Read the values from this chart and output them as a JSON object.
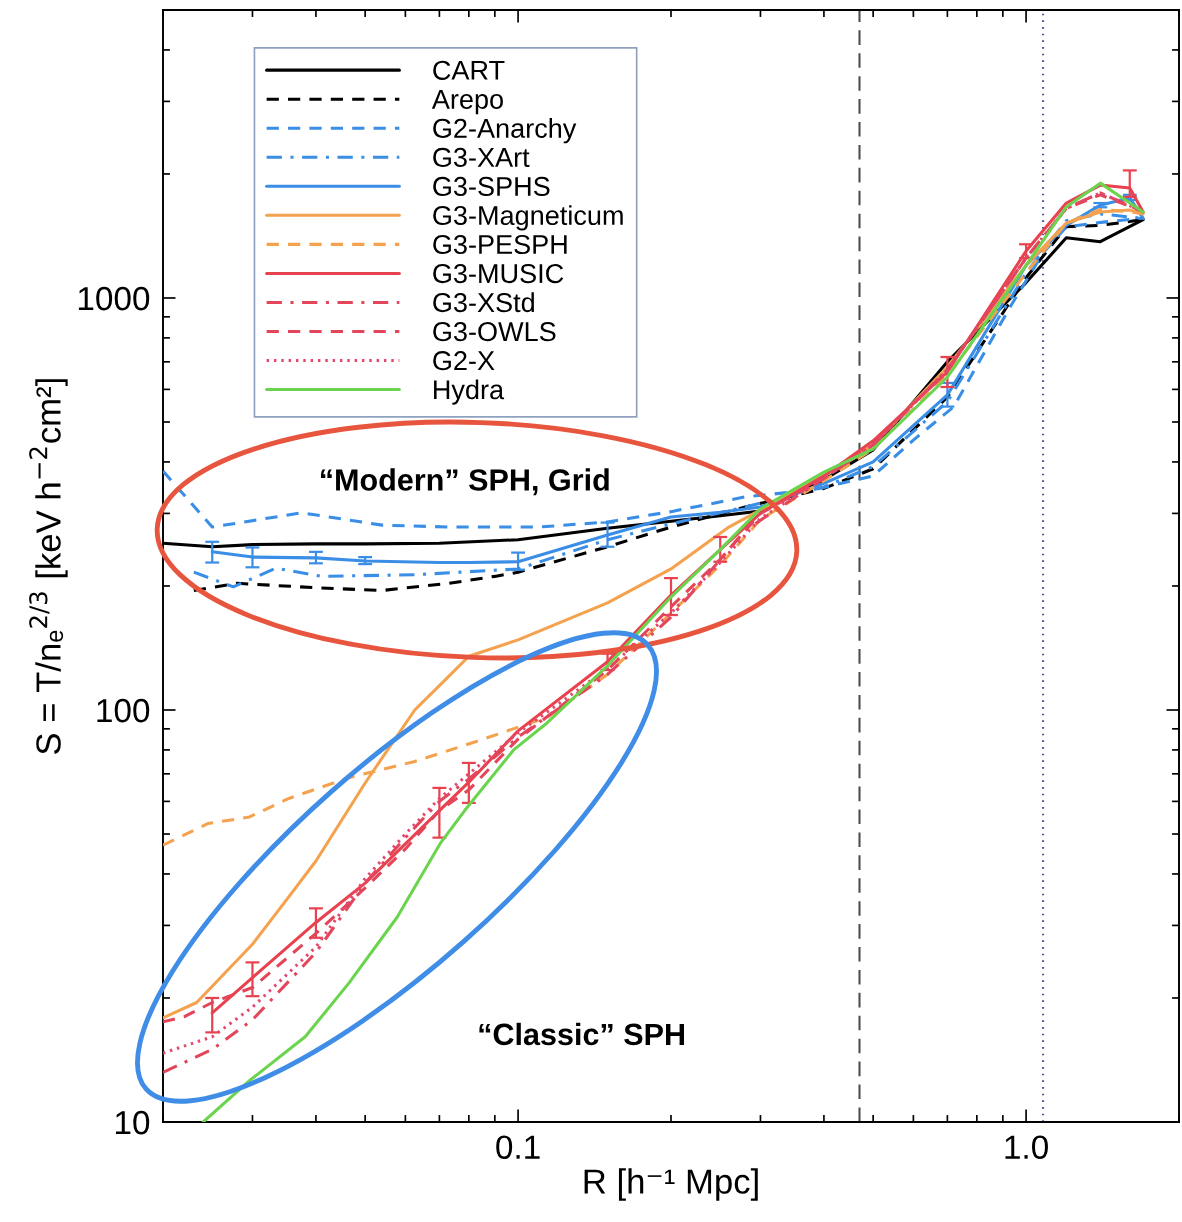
{
  "chart_data": {
    "type": "line",
    "xlabel": "R [h⁻¹ Mpc]",
    "ylabel": "S = T/nₑ$^{2/3}$ [keV h$^{−2}$cm²]",
    "log": "xy",
    "xlim": [
      0.02,
      2
    ],
    "ylim": [
      10,
      5000
    ],
    "xticks": [
      0.1,
      {
        "value": 1,
        "label": "1.0"
      }
    ],
    "yticks": [
      10,
      100,
      1000
    ],
    "legend": "top left",
    "series": [
      {
        "name": "CART",
        "color": "#000000",
        "line_style": "solid",
        "x": [
          0.02,
          0.025,
          0.03,
          0.04,
          0.05,
          0.07,
          0.1,
          0.15,
          0.2,
          0.25,
          0.3,
          0.4,
          0.5,
          0.7,
          1.0,
          1.2,
          1.4,
          1.7
        ],
        "values": [
          254,
          249,
          252,
          253,
          253,
          254,
          259,
          276,
          287,
          296,
          304,
          362,
          428,
          700,
          1090,
          1400,
          1370,
          1550
        ]
      },
      {
        "name": "Arepo",
        "color": "#000000",
        "line_style": "dashed",
        "x": [
          0.023,
          0.028,
          0.04,
          0.054,
          0.073,
          0.09,
          0.1,
          0.15,
          0.2,
          0.28,
          0.4,
          0.5,
          0.7,
          1.0,
          1.2,
          1.4,
          1.7
        ],
        "values": [
          195,
          203,
          198,
          195,
          203,
          211,
          216,
          249,
          278,
          311,
          345,
          385,
          575,
          1120,
          1490,
          1500,
          1550
        ]
      },
      {
        "name": "G2-Anarchy",
        "color": "#3a8ee6",
        "line_style": "dashed",
        "x": [
          0.02,
          0.025,
          0.0375,
          0.054,
          0.073,
          0.11,
          0.15,
          0.2,
          0.28,
          0.38,
          0.5,
          0.6,
          0.72,
          0.93,
          1.08,
          1.2,
          1.42,
          1.7
        ],
        "values": [
          380,
          278,
          301,
          281,
          278,
          278,
          286,
          303,
          329,
          342,
          370,
          452,
          544,
          951,
          1286,
          1488,
          1528,
          1564
        ]
      },
      {
        "name": "G3-XArt",
        "color": "#3a8ee6",
        "line_style": "dashdot",
        "x": [
          0.023,
          0.0275,
          0.0334,
          0.041,
          0.063,
          0.1,
          0.15,
          0.2,
          0.28,
          0.4,
          0.5,
          0.7,
          1.0,
          1.2,
          1.4,
          1.7
        ],
        "values": [
          216,
          199,
          221,
          211,
          213,
          220,
          259,
          283,
          311,
          348,
          390,
          560,
          1150,
          1540,
          1600,
          1560
        ]
      },
      {
        "name": "G3-SPHS",
        "color": "#3a8ee6",
        "line_style": "solid",
        "x": [
          0.025,
          0.03,
          0.04,
          0.05,
          0.07,
          0.08,
          0.1,
          0.15,
          0.2,
          0.25,
          0.3,
          0.4,
          0.5,
          0.7,
          1.0,
          1.2,
          1.4,
          1.6,
          1.7
        ],
        "values": [
          242,
          235,
          234,
          230,
          228,
          228,
          229,
          266,
          294,
          302,
          311,
          355,
          400,
          582,
          1200,
          1500,
          1680,
          1750,
          1560
        ],
        "errors": [
          [
            228,
            256
          ],
          [
            222,
            248
          ],
          [
            227,
            242
          ],
          [
            226,
            235
          ],
          null,
          null,
          [
            219,
            241
          ],
          [
            249,
            285
          ],
          null,
          null,
          null,
          null,
          null,
          [
            545,
            622
          ],
          null,
          null,
          [
            1660,
            1700
          ],
          [
            1730,
            1780
          ],
          null
        ]
      },
      {
        "name": "G3-Magneticum",
        "color": "#f4a24e",
        "line_style": "solid",
        "x": [
          0.02,
          0.0233,
          0.03,
          0.035,
          0.04,
          0.05,
          0.0626,
          0.0727,
          0.08,
          0.1,
          0.15,
          0.2,
          0.26,
          0.3,
          0.4,
          0.5,
          0.7,
          1.0,
          1.2,
          1.4,
          1.6,
          1.7
        ],
        "values": [
          17.9,
          19.5,
          27,
          34.6,
          43,
          66.5,
          100,
          120,
          135,
          148,
          182,
          220,
          278,
          306,
          370,
          440,
          680,
          1200,
          1520,
          1617,
          1635,
          1600
        ]
      },
      {
        "name": "G3-PESPH",
        "color": "#f4a24e",
        "line_style": "dashed",
        "x": [
          0.02,
          0.0245,
          0.0296,
          0.0354,
          0.0464,
          0.0626,
          0.0843,
          0.114,
          0.15,
          0.2,
          0.25,
          0.3,
          0.4,
          0.5,
          0.7,
          1.0,
          1.2,
          1.4,
          1.6,
          1.7
        ],
        "values": [
          47,
          53,
          55,
          61,
          68.5,
          75,
          84.5,
          96,
          122,
          172,
          225,
          290,
          360,
          430,
          650,
          1150,
          1520,
          1640,
          1620,
          1600
        ]
      },
      {
        "name": "G3-MUSIC",
        "color": "#e8424f",
        "line_style": "solid",
        "x": [
          0.025,
          0.03,
          0.04,
          0.05,
          0.07,
          0.08,
          0.1,
          0.15,
          0.2,
          0.25,
          0.3,
          0.4,
          0.5,
          0.7,
          1.0,
          1.2,
          1.4,
          1.6,
          1.7
        ],
        "values": [
          18.4,
          22.4,
          30.5,
          38,
          57,
          66.8,
          89,
          131,
          190,
          245,
          300,
          370,
          450,
          662,
          1300,
          1700,
          1880,
          1850,
          1617
        ],
        "errors": [
          [
            16.5,
            20
          ],
          [
            20.2,
            24.4
          ],
          [
            28,
            33
          ],
          null,
          [
            49,
            64.7
          ],
          [
            59.5,
            74.4
          ],
          null,
          [
            125,
            137
          ],
          [
            170,
            209
          ],
          [
            229,
            263
          ],
          null,
          null,
          null,
          [
            608,
            719
          ],
          [
            1250,
            1350
          ],
          null,
          null,
          [
            1760,
            2040
          ],
          null
        ]
      },
      {
        "name": "G3-XStd",
        "color": "#e3455a",
        "line_style": "dashdot",
        "x": [
          0.02,
          0.025,
          0.03,
          0.04,
          0.05,
          0.06,
          0.07,
          0.08,
          0.1,
          0.15,
          0.2,
          0.28,
          0.4,
          0.5,
          0.7,
          1.0,
          1.2,
          1.4,
          1.7
        ],
        "values": [
          13.2,
          15,
          17.7,
          25.8,
          38,
          49,
          60,
          68,
          86,
          122,
          168,
          273,
          365,
          440,
          670,
          1250,
          1650,
          1800,
          1620
        ]
      },
      {
        "name": "G3-OWLS",
        "color": "#e3455a",
        "line_style": "dashed",
        "x": [
          0.02,
          0.022,
          0.025,
          0.03,
          0.04,
          0.05,
          0.06,
          0.07,
          0.08,
          0.1,
          0.15,
          0.2,
          0.25,
          0.3,
          0.4,
          0.5,
          0.7,
          1.0,
          1.2,
          1.4,
          1.7
        ],
        "values": [
          17.5,
          18,
          19.5,
          21.2,
          28.7,
          37,
          46,
          57,
          64,
          85,
          125,
          178,
          232,
          300,
          365,
          440,
          670,
          1250,
          1650,
          1780,
          1620
        ]
      },
      {
        "name": "G2-X",
        "color": "#e3486e",
        "line_style": "dotted",
        "x": [
          0.02,
          0.025,
          0.03,
          0.04,
          0.05,
          0.06,
          0.07,
          0.08,
          0.1,
          0.15,
          0.2,
          0.25,
          0.3,
          0.4,
          0.5,
          0.7,
          1.0,
          1.2,
          1.4,
          1.7
        ],
        "values": [
          14.7,
          16.1,
          19,
          26.6,
          39,
          50,
          61,
          70,
          88,
          126,
          172,
          228,
          292,
          365,
          440,
          670,
          1250,
          1650,
          1800,
          1620
        ]
      },
      {
        "name": "Hydra",
        "color": "#6bd44e",
        "line_style": "solid",
        "x": [
          0.024,
          0.0296,
          0.0381,
          0.0464,
          0.0578,
          0.0704,
          0.0785,
          0.098,
          0.114,
          0.15,
          0.2,
          0.25,
          0.3,
          0.4,
          0.5,
          0.7,
          1.0,
          1.2,
          1.4,
          1.6,
          1.7
        ],
        "values": [
          10,
          12.6,
          16.1,
          21.7,
          31.4,
          47.6,
          57,
          80,
          93,
          128,
          188,
          245,
          308,
          378,
          430,
          643,
          1200,
          1663,
          1900,
          1700,
          1617
        ]
      }
    ],
    "ref_lines": [
      {
        "axis": "x",
        "value": 0.47,
        "color": "#4d4d4d",
        "line_style": "dashed"
      },
      {
        "axis": "x",
        "value": 1.08,
        "color": "#50509a",
        "line_style": "dotted"
      }
    ],
    "annotations": [
      "“Modern” SPH, Grid",
      "“Classic” SPH"
    ]
  }
}
